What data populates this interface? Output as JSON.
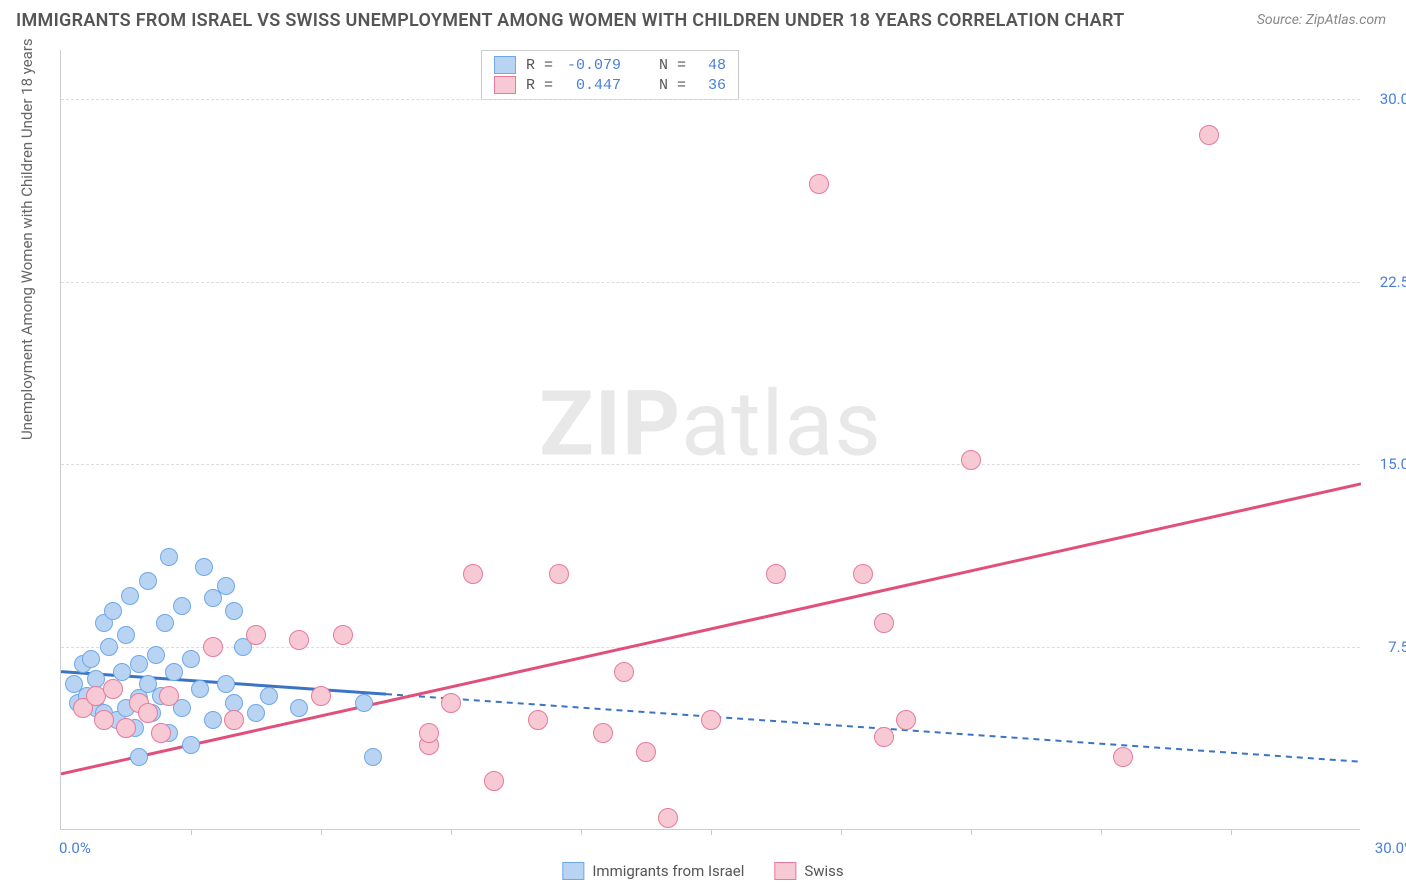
{
  "title": "IMMIGRANTS FROM ISRAEL VS SWISS UNEMPLOYMENT AMONG WOMEN WITH CHILDREN UNDER 18 YEARS CORRELATION CHART",
  "source": "Source: ZipAtlas.com",
  "watermark_bold": "ZIP",
  "watermark_light": "atlas",
  "y_axis_title": "Unemployment Among Women with Children Under 18 years",
  "axes": {
    "x_min": 0,
    "x_max": 30,
    "y_min": 0,
    "y_max": 32,
    "x_ticks": [
      {
        "pos": 0.0,
        "label": "0.0%"
      },
      {
        "pos": 30.0,
        "label": "30.0%"
      }
    ],
    "x_minor_ticks": [
      3,
      6,
      9,
      12,
      15,
      18,
      21,
      24,
      27
    ],
    "y_ticks": [
      {
        "pos": 7.5,
        "label": "7.5%"
      },
      {
        "pos": 15.0,
        "label": "15.0%"
      },
      {
        "pos": 22.5,
        "label": "22.5%"
      },
      {
        "pos": 30.0,
        "label": "30.0%"
      }
    ]
  },
  "series": [
    {
      "name": "Immigrants from Israel",
      "key": "israel",
      "fill": "#b9d4f2",
      "stroke": "#6fa8e8",
      "marker_size": 18,
      "R": "-0.079",
      "N": "48",
      "trend": {
        "x1": 0,
        "y1": 6.5,
        "x2": 30,
        "y2": 2.8,
        "solid_until_x": 7.5,
        "color": "#3b74c4"
      },
      "points": [
        [
          0.3,
          6.0
        ],
        [
          0.4,
          5.2
        ],
        [
          0.5,
          6.8
        ],
        [
          0.6,
          5.5
        ],
        [
          0.7,
          7.0
        ],
        [
          0.8,
          5.0
        ],
        [
          0.8,
          6.2
        ],
        [
          1.0,
          8.5
        ],
        [
          1.0,
          4.8
        ],
        [
          1.1,
          7.5
        ],
        [
          1.2,
          5.8
        ],
        [
          1.2,
          9.0
        ],
        [
          1.3,
          4.5
        ],
        [
          1.4,
          6.5
        ],
        [
          1.5,
          5.0
        ],
        [
          1.5,
          8.0
        ],
        [
          1.6,
          9.6
        ],
        [
          1.7,
          4.2
        ],
        [
          1.8,
          6.8
        ],
        [
          1.8,
          5.4
        ],
        [
          1.8,
          3.0
        ],
        [
          2.0,
          10.2
        ],
        [
          2.0,
          6.0
        ],
        [
          2.1,
          4.8
        ],
        [
          2.2,
          7.2
        ],
        [
          2.3,
          5.5
        ],
        [
          2.4,
          8.5
        ],
        [
          2.5,
          11.2
        ],
        [
          2.5,
          4.0
        ],
        [
          2.6,
          6.5
        ],
        [
          2.8,
          5.0
        ],
        [
          2.8,
          9.2
        ],
        [
          3.0,
          7.0
        ],
        [
          3.0,
          3.5
        ],
        [
          3.2,
          5.8
        ],
        [
          3.3,
          10.8
        ],
        [
          3.5,
          4.5
        ],
        [
          3.5,
          9.5
        ],
        [
          3.8,
          6.0
        ],
        [
          3.8,
          10.0
        ],
        [
          4.0,
          5.2
        ],
        [
          4.0,
          9.0
        ],
        [
          4.2,
          7.5
        ],
        [
          4.5,
          4.8
        ],
        [
          4.8,
          5.5
        ],
        [
          5.5,
          5.0
        ],
        [
          7.0,
          5.2
        ],
        [
          7.2,
          3.0
        ]
      ]
    },
    {
      "name": "Swiss",
      "key": "swiss",
      "fill": "#f6c9d4",
      "stroke": "#e77a9a",
      "marker_size": 20,
      "R": "0.447",
      "N": "36",
      "trend": {
        "x1": 0,
        "y1": 2.3,
        "x2": 30,
        "y2": 14.2,
        "solid_until_x": 30,
        "color": "#e0507a"
      },
      "points": [
        [
          0.5,
          5.0
        ],
        [
          0.8,
          5.5
        ],
        [
          1.0,
          4.5
        ],
        [
          1.2,
          5.8
        ],
        [
          1.5,
          4.2
        ],
        [
          1.8,
          5.2
        ],
        [
          2.0,
          4.8
        ],
        [
          2.3,
          4.0
        ],
        [
          2.5,
          5.5
        ],
        [
          3.5,
          7.5
        ],
        [
          4.0,
          4.5
        ],
        [
          4.5,
          8.0
        ],
        [
          5.5,
          7.8
        ],
        [
          6.0,
          5.5
        ],
        [
          6.5,
          8.0
        ],
        [
          8.5,
          3.5
        ],
        [
          8.5,
          4.0
        ],
        [
          9.0,
          5.2
        ],
        [
          9.5,
          10.5
        ],
        [
          10.0,
          2.0
        ],
        [
          11.0,
          4.5
        ],
        [
          11.5,
          10.5
        ],
        [
          12.5,
          4.0
        ],
        [
          13.0,
          6.5
        ],
        [
          13.5,
          3.2
        ],
        [
          14.0,
          0.5
        ],
        [
          15.0,
          4.5
        ],
        [
          16.5,
          10.5
        ],
        [
          17.5,
          26.5
        ],
        [
          18.5,
          10.5
        ],
        [
          19.0,
          8.5
        ],
        [
          19.0,
          3.8
        ],
        [
          19.5,
          4.5
        ],
        [
          21.0,
          15.2
        ],
        [
          24.5,
          3.0
        ],
        [
          26.5,
          28.5
        ]
      ]
    }
  ],
  "stats_legend_labels": {
    "R": "R =",
    "N": "N ="
  },
  "bottom_legend": [
    {
      "label": "Immigrants from Israel",
      "fill": "#b9d4f2",
      "stroke": "#6fa8e8"
    },
    {
      "label": "Swiss",
      "fill": "#f6c9d4",
      "stroke": "#e77a9a"
    }
  ]
}
